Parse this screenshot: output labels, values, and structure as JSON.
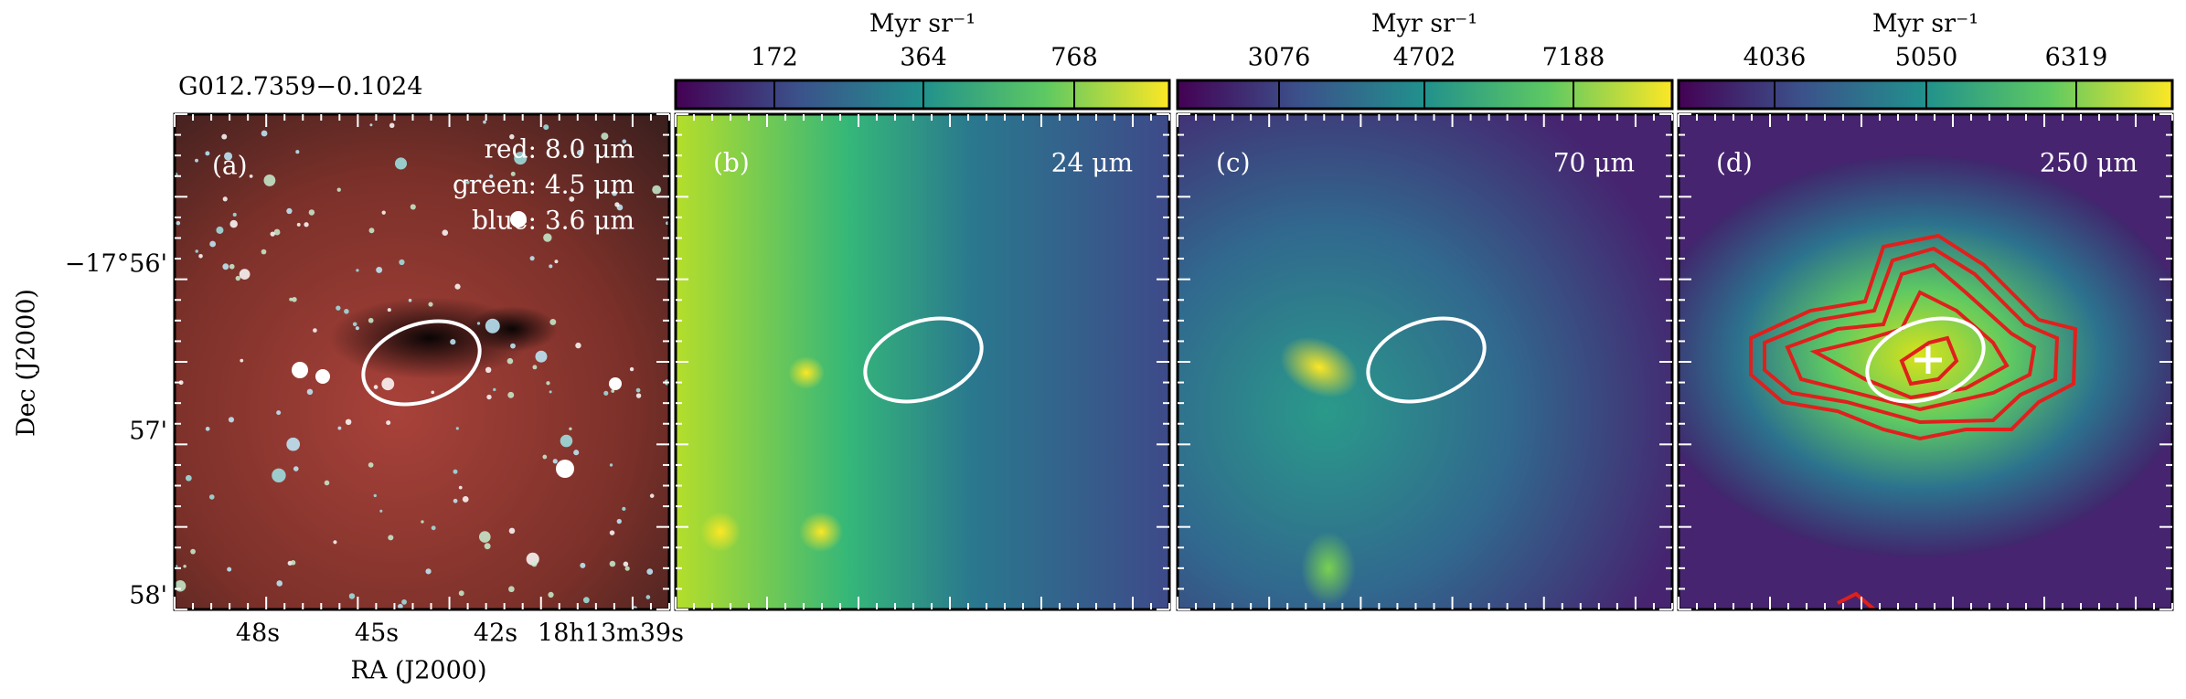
{
  "figure": {
    "source_name": "G012.7359−0.1024",
    "y_axis_label": "Dec (J2000)",
    "x_axis_label": "RA (J2000)",
    "y_ticks": [
      "−17°56'",
      "57'",
      "58'"
    ],
    "x_ticks": [
      "48s",
      "45s",
      "42s",
      "18h13m39s"
    ],
    "panels": [
      {
        "label": "(a)",
        "annotations": [
          "red: 8.0 μm",
          "green: 4.5 μm",
          "blue: 3.6 μm"
        ]
      },
      {
        "label": "(b)",
        "band": "24 μm",
        "colorbar": {
          "unit": "Myr sr⁻¹",
          "ticks": [
            172,
            364,
            768
          ]
        }
      },
      {
        "label": "(c)",
        "band": "70 μm",
        "colorbar": {
          "unit": "Myr sr⁻¹",
          "ticks": [
            3076,
            4702,
            7188
          ]
        }
      },
      {
        "label": "(d)",
        "band": "250 μm",
        "colorbar": {
          "unit": "Myr sr⁻¹",
          "ticks": [
            4036,
            5050,
            6319
          ]
        }
      }
    ]
  }
}
